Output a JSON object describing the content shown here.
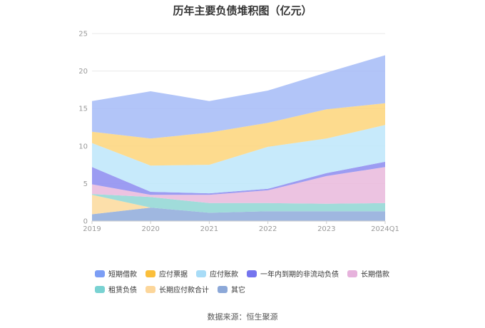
{
  "chart_data": {
    "type": "area",
    "stacked": true,
    "title": "历年主要负债堆积图（亿元）",
    "categories": [
      "2019",
      "2020",
      "2021",
      "2022",
      "2023",
      "2024Q1"
    ],
    "ylim": [
      0,
      25
    ],
    "yticks": [
      0,
      5,
      10,
      15,
      20,
      25
    ],
    "grid": true,
    "legend_position": "bottom",
    "series": [
      {
        "name": "其它",
        "color": "#8eaadb",
        "values": [
          0.9,
          1.8,
          1.1,
          1.3,
          1.3,
          1.3
        ]
      },
      {
        "name": "长期应付款合计",
        "color": "#fbd99b",
        "values": [
          2.6,
          0.0,
          0.0,
          0.0,
          0.0,
          0.0
        ]
      },
      {
        "name": "租赁负债",
        "color": "#8fd6d4",
        "values": [
          0.1,
          1.4,
          1.3,
          1.1,
          1.0,
          1.1
        ]
      },
      {
        "name": "长期借款",
        "color": "#e9b8dc",
        "values": [
          1.3,
          0.3,
          1.1,
          1.7,
          3.7,
          4.8
        ]
      },
      {
        "name": "一年内到期的非流动负债",
        "color": "#8b8bf0",
        "values": [
          2.3,
          0.4,
          0.2,
          0.2,
          0.4,
          0.7
        ]
      },
      {
        "name": "应付账款",
        "color": "#bde6fa",
        "values": [
          3.2,
          3.5,
          3.8,
          5.6,
          4.6,
          4.9
        ]
      },
      {
        "name": "应付票据",
        "color": "#fdd57a",
        "values": [
          1.5,
          3.6,
          4.3,
          3.2,
          3.9,
          2.9
        ]
      },
      {
        "name": "短期借款",
        "color": "#a5bbf7",
        "values": [
          4.1,
          6.3,
          4.2,
          4.3,
          4.9,
          6.4
        ]
      }
    ]
  },
  "legend": {
    "items": [
      {
        "label": "短期借款",
        "color": "#7c9ef5"
      },
      {
        "label": "应付票据",
        "color": "#fbbf3b"
      },
      {
        "label": "应付账款",
        "color": "#a8dcf7"
      },
      {
        "label": "一年内到期的非流动负债",
        "color": "#7474ee"
      },
      {
        "label": "长期借款",
        "color": "#e6b2dc"
      },
      {
        "label": "租赁负债",
        "color": "#79d2d2"
      },
      {
        "label": "长期应付款合计",
        "color": "#fcd69a"
      },
      {
        "label": "其它",
        "color": "#8ca8d8"
      }
    ]
  },
  "source": "数据来源：恒生聚源"
}
